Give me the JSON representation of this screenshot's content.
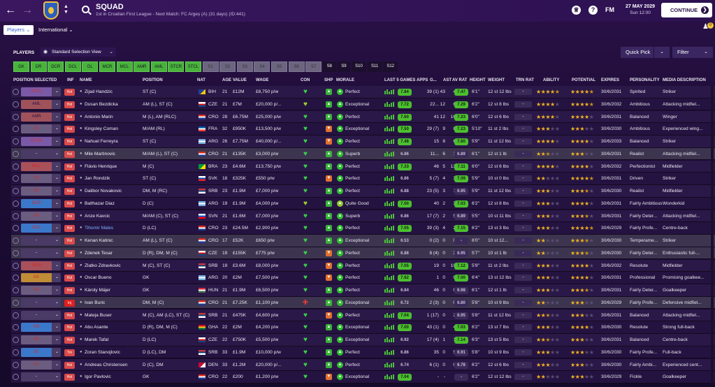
{
  "header": {
    "title": "SQUAD",
    "subtitle": "1st in Croatian First League - Next Match: FC Argeș (A) (31 days) (ID:441)",
    "date": "27 MAY 2029",
    "time": "Sun 12:00",
    "fm_label": "FM",
    "continue_label": "CONTINUE",
    "badge_count": "0"
  },
  "tabs": {
    "players": "Players",
    "international": "International"
  },
  "toolbar": {
    "section_label": "PLAYERS",
    "view": "Standard Selection View",
    "quick_pick": "Quick Pick",
    "filter": "Filter"
  },
  "position_filters": [
    "GK",
    "DR",
    "DCR",
    "DCL",
    "DL",
    "MCR",
    "MCL",
    "AMR",
    "AML",
    "STCR",
    "STCL",
    "S1",
    "S2",
    "S3",
    "S4",
    "S5",
    "S6",
    "S7",
    "S8",
    "S9",
    "S10",
    "S11",
    "S12"
  ],
  "columns": [
    "POSITION SELECTED",
    "INF",
    "NAME",
    "POSITION",
    "NAT",
    "AGE",
    "VALUE",
    "WAGE",
    "CON",
    "SHP",
    "MORALE",
    "LAST 5 GAMES",
    "APPS",
    "G...",
    "AST",
    "AV RAT",
    "HEIGHT",
    "WEIGHT",
    "TRN RAT",
    "ABILITY",
    "POTENTIAL",
    "EXPIRES",
    "PERSONALITY",
    "MEDIA DESCRIPTION"
  ],
  "players": [
    {
      "sel": "STCL",
      "inf": "Hol",
      "name": "Zijad Handzic",
      "position": "ST (C)",
      "nat": "BIH",
      "age": "21",
      "value": "£12M",
      "wage": "£8,750 p/w",
      "con": "green",
      "ship": "up",
      "morale": "Perfect",
      "l5": "7.84",
      "apps": "39 (1)",
      "goals": "43",
      "ast": "4",
      "avr": "7.47",
      "height": "6'1\"",
      "weight": "12 st 12 lbs",
      "trn": "-",
      "ability": 4.5,
      "potential": 4.5,
      "expires": "30/6/2031",
      "personality": "Spirited",
      "media": "Striker"
    },
    {
      "sel": "AML",
      "inf": "Hol",
      "name": "Dusan Bezdicka",
      "position": "AM (L), ST (C)",
      "nat": "CZE",
      "age": "21",
      "value": "£7M",
      "wage": "£20,000 p/...",
      "con": "yellowgreen",
      "ship": "up",
      "morale": "Exceptional",
      "l5": "7.72",
      "apps": "22...",
      "goals": "12",
      "ast": "6",
      "avr": "7.29",
      "height": "6'2\"",
      "weight": "12 st 8 lbs",
      "trn": "-",
      "ability": 4,
      "potential": 4.5,
      "expires": "30/6/2032",
      "personality": "Ambitious",
      "media": "Attacking midfiel..."
    },
    {
      "sel": "AMR",
      "inf": "Hol",
      "name": "Antonio Marin",
      "position": "M (L), AM (RLC)",
      "nat": "CRO",
      "age": "28",
      "value": "£6.75M",
      "wage": "£25,000 p/w",
      "con": "green",
      "ship": "up",
      "morale": "Perfect",
      "l5": "7.60",
      "apps": "41",
      "goals": "12",
      "ast": "16",
      "avr": "7.23",
      "height": "6'0\"",
      "weight": "12 st 6 lbs",
      "trn": "-",
      "ability": 4,
      "potential": 4,
      "expires": "30/6/2031",
      "personality": "Balanced",
      "media": "Winger"
    },
    {
      "sel": "S1",
      "inf": "Hol",
      "name": "Kingsley Coman",
      "position": "M/AM (RL)",
      "nat": "FRA",
      "age": "32",
      "value": "£950K",
      "wage": "£13,500 p/w",
      "con": "green",
      "ship": "down",
      "morale": "Exceptional",
      "l5": "7.50",
      "apps": "29 (7)",
      "goals": "9",
      "ast": "8",
      "avr": "7.23",
      "height": "5'10\"",
      "weight": "11 st 2 lbs",
      "trn": "-",
      "ability": 3,
      "potential": 3,
      "expires": "30/6/2030",
      "personality": "Ambitious",
      "media": "Experienced wing..."
    },
    {
      "sel": "STCR",
      "inf": "Hol",
      "name": "Nahuel Ferreyra",
      "position": "ST (C)",
      "nat": "ARG",
      "age": "26",
      "value": "£7.75M",
      "wage": "£40,000 p/...",
      "con": "green",
      "ship": "down",
      "morale": "Perfect",
      "l5": "7.48",
      "apps": "15",
      "goals": "8",
      "ast": "6",
      "avr": "7.60",
      "height": "5'9\"",
      "weight": "11 st 12 lbs",
      "trn": "-",
      "ability": 4,
      "potential": 4,
      "expires": "30/6/2033",
      "personality": "Balanced",
      "media": "Striker"
    },
    {
      "sel": "-",
      "inf": "Hol",
      "name": "Mile Martinovic",
      "position": "M/AM (L), ST (C)",
      "nat": "CRO",
      "age": "21",
      "value": "£135K",
      "wage": "£3,000 p/w",
      "con": "green",
      "ship": "up",
      "morale": "Superb",
      "l5": "6.86",
      "apps": "11...",
      "goals": "6",
      "ast": "1",
      "avr": "6.89",
      "height": "6'1\"",
      "weight": "12 st 1 lb",
      "trn": "-",
      "ability": 2.5,
      "potential": 3,
      "expires": "30/6/2031",
      "personality": "Realist",
      "media": "Attacking midfiel..."
    },
    {
      "sel": "MCL",
      "inf": "Hol",
      "name": "Flávio Henrique",
      "position": "M (C)",
      "nat": "BRA",
      "age": "23",
      "value": "£4.6M",
      "wage": "£13,750 p/w",
      "con": "green",
      "ship": "up",
      "morale": "Perfect",
      "l5": "7.33",
      "apps": "46",
      "goals": "5",
      "ast": "13",
      "avr": "7.11",
      "height": "6'0\"",
      "weight": "12 st 6 lbs",
      "trn": "-",
      "ability": 4,
      "potential": 4,
      "expires": "30/6/2032",
      "personality": "Perfectionist",
      "media": "Midfielder"
    },
    {
      "sel": "S3",
      "inf": "Hol",
      "name": "Jan Rondzik",
      "position": "ST (C)",
      "nat": "SVK",
      "age": "18",
      "value": "£325K",
      "wage": "£550 p/w",
      "con": "green",
      "ship": "down",
      "morale": "Perfect",
      "l5": "6.86",
      "apps": "5 (7)",
      "goals": "4",
      "ast": "3",
      "avr": "7.09",
      "height": "5'9\"",
      "weight": "10 st 0 lbs",
      "trn": "-",
      "ability": 2,
      "potential": 4.5,
      "expires": "30/6/2031",
      "personality": "Driven",
      "media": "Striker"
    },
    {
      "sel": "S2",
      "inf": "Hol",
      "name": "Dalibor Novakovic",
      "position": "DM, M (RC)",
      "nat": "SRB",
      "age": "23",
      "value": "£1.9M",
      "wage": "£7,000 p/w",
      "con": "green",
      "ship": "up",
      "morale": "Perfect",
      "l5": "6.88",
      "apps": "23 (5)",
      "goals": "3",
      "ast": "1",
      "avr": "6.95",
      "height": "5'9\"",
      "weight": "11 st 12 lbs",
      "trn": "-",
      "ability": 3,
      "potential": 3.5,
      "expires": "30/6/2030",
      "personality": "Realist",
      "media": "Midfielder"
    },
    {
      "sel": "DCR",
      "inf": "Hol",
      "name": "Balthazar Diaz",
      "position": "D (C)",
      "nat": "ARG",
      "age": "19",
      "value": "£1.9M",
      "wage": "£4,000 p/w",
      "con": "yellowgreen",
      "ship": "up",
      "morale": "Quite Good",
      "l5": "7.00",
      "apps": "40",
      "goals": "2",
      "ast": "3",
      "avr": "7.03",
      "height": "6'2\"",
      "weight": "12 st 8 lbs",
      "trn": "-",
      "ability": 3,
      "potential": 4,
      "expires": "30/6/2031",
      "personality": "Fairly Ambitious",
      "media": "Wonderkid"
    },
    {
      "sel": "S4",
      "inf": "Hol",
      "name": "Anze Kavcic",
      "position": "M/AM (C), ST (C)",
      "nat": "SVN",
      "age": "21",
      "value": "£1.6M",
      "wage": "£7,000 p/w",
      "con": "green",
      "ship": "up",
      "morale": "Superb",
      "l5": "6.86",
      "apps": "17 (7)",
      "goals": "2",
      "ast": "5",
      "avr": "6.89",
      "height": "5'5\"",
      "weight": "10 st 11 lbs",
      "trn": "-",
      "ability": 3,
      "potential": 3.5,
      "expires": "30/6/2031",
      "personality": "Fairly Deter...",
      "media": "Attacking midfiel..."
    },
    {
      "sel": "DCL",
      "inf": "Hol",
      "name": "Tihomir Males",
      "position": "D (LC)",
      "nat": "CRO",
      "age": "23",
      "value": "£24.5M",
      "wage": "£2,900 p/w",
      "con": "green",
      "ship": "up",
      "morale": "Perfect",
      "l5": "7.05",
      "apps": "39 (3)",
      "goals": "4",
      "ast": "2",
      "avr": "7.15",
      "height": "6'2\"",
      "weight": "13 st 3 lbs",
      "trn": "-",
      "ability": 3,
      "potential": 4.5,
      "expires": "30/6/2029",
      "personality": "Fairly Profe...",
      "media": "Centre-back"
    },
    {
      "sel": "-",
      "inf": "Hol",
      "name": "Kenan Katinic",
      "position": "AM (L), ST (C)",
      "nat": "CRO",
      "age": "17",
      "value": "£52K",
      "wage": "£650 p/w",
      "con": "green",
      "ship": "up",
      "morale": "Exceptional",
      "l5": "6.53",
      "apps": "0 (2)",
      "goals": "0",
      "ast": "0",
      "avr": "-",
      "height": "6'0\"",
      "weight": "10 st 12...",
      "trn": "-",
      "ability": 2,
      "potential": 3.5,
      "expires": "30/6/2030",
      "personality": "Temperame...",
      "media": "Striker"
    },
    {
      "sel": "-",
      "inf": "Hol",
      "name": "Zdenek Tesar",
      "position": "D (R), DM, M (C)",
      "nat": "CZE",
      "age": "19",
      "value": "£155K",
      "wage": "£775 p/w",
      "con": "green",
      "ship": "down",
      "morale": "Perfect",
      "l5": "6.88",
      "apps": "8 (4)",
      "goals": "0",
      "ast": "2",
      "avr": "6.95",
      "height": "5'7\"",
      "weight": "10 st 1 lb",
      "trn": "-",
      "ability": 2,
      "potential": 3.5,
      "expires": "30/6/2030",
      "personality": "Fairly Deter...",
      "media": "Enthusiastic full-..."
    },
    {
      "sel": "MCR",
      "inf": "Hol",
      "name": "Zlatko Zdravkovic",
      "position": "M (C), ST (C)",
      "nat": "SRB",
      "age": "19",
      "value": "£3.6M",
      "wage": "£8,000 p/w",
      "con": "green",
      "ship": "down",
      "morale": "Perfect",
      "l5": "7.05",
      "apps": "19",
      "goals": "0",
      "ast": "10",
      "avr": "7.12",
      "height": "5'9\"",
      "weight": "11 st 2 lbs",
      "trn": "-",
      "ability": 3,
      "potential": 4,
      "expires": "30/6/2032",
      "personality": "Resolute",
      "media": "Midfielder"
    },
    {
      "sel": "GK",
      "inf": "Hol",
      "name": "Oscar Bueno",
      "position": "GK",
      "nat": "ARG",
      "age": "20",
      "value": "£2M",
      "wage": "£7,500 p/w",
      "con": "green",
      "ship": "down",
      "morale": "Perfect",
      "l5": "7.62",
      "apps": "1",
      "goals": "0",
      "ast": "0",
      "avr": "7.00",
      "height": "6'4\"",
      "weight": "13 st 12 lbs",
      "trn": "-",
      "ability": 3,
      "potential": 4,
      "expires": "30/6/2031",
      "personality": "Professional",
      "media": "Promising goalkee..."
    },
    {
      "sel": "S5",
      "inf": "Hol",
      "name": "Károly Májer",
      "position": "GK",
      "nat": "HUN",
      "age": "21",
      "value": "£1.9M",
      "wage": "£6,500 p/w",
      "con": "green",
      "ship": "up",
      "morale": "Perfect",
      "l5": "6.84",
      "apps": "46",
      "goals": "0",
      "ast": "0",
      "avr": "6.98",
      "height": "6'1\"",
      "weight": "12 st 1 lb",
      "trn": "-",
      "ability": 3,
      "potential": 3.5,
      "expires": "30/6/2031",
      "personality": "Fairly Deter...",
      "media": "Goalkeeper"
    },
    {
      "sel": "-",
      "inf": "Inj",
      "name": "Ivan Buric",
      "position": "DM, M (C)",
      "nat": "CRO",
      "age": "21",
      "value": "£7.25K",
      "wage": "£1,100 p/w",
      "con": "red",
      "ship": "up",
      "morale": "Exceptional",
      "l5": "6.72",
      "apps": "2 (3)",
      "goals": "0",
      "ast": "0",
      "avr": "6.80",
      "height": "5'8\"",
      "weight": "10 st 9 lbs",
      "trn": "-",
      "ability": 2,
      "potential": 3,
      "expires": "30/6/2029",
      "personality": "Fairly Profe...",
      "media": "Defensive midfiel..."
    },
    {
      "sel": "-",
      "inf": "Hol",
      "name": "Mateja Buser",
      "position": "M (C), AM (LC), ST (C)",
      "nat": "SRB",
      "age": "21",
      "value": "£475K",
      "wage": "£4,600 p/w",
      "con": "green",
      "ship": "down",
      "morale": "Perfect",
      "l5": "7.04",
      "apps": "1 (17)",
      "goals": "0",
      "ast": "2",
      "avr": "6.95",
      "height": "5'8\"",
      "weight": "11 st 12 lbs",
      "trn": "-",
      "ability": 2.5,
      "potential": 3,
      "expires": "30/6/2031",
      "personality": "Balanced",
      "media": "Attacking midfiel..."
    },
    {
      "sel": "DR",
      "inf": "Hol",
      "name": "Abu Asante",
      "position": "D (R), DM, M (C)",
      "nat": "GHA",
      "age": "22",
      "value": "£2M",
      "wage": "£4,200 p/w",
      "con": "green",
      "ship": "up",
      "morale": "Exceptional",
      "l5": "7.00",
      "apps": "43 (1)",
      "goals": "0",
      "ast": "4",
      "avr": "7.03",
      "height": "6'2\"",
      "weight": "13 st 7 lbs",
      "trn": "-",
      "ability": 3,
      "potential": 4,
      "expires": "30/6/2030",
      "personality": "Resolute",
      "media": "Strong full-back"
    },
    {
      "sel": "S6",
      "inf": "Hol",
      "name": "Marek Tafat",
      "position": "D (LC)",
      "nat": "CZE",
      "age": "22",
      "value": "£750K",
      "wage": "£5,500 p/w",
      "con": "green",
      "ship": "up",
      "morale": "Exceptional",
      "l5": "6.92",
      "apps": "17 (4)",
      "goals": "1",
      "ast": "1",
      "avr": "7.14",
      "height": "6'3\"",
      "weight": "13 st 5 lbs",
      "trn": "-",
      "ability": 2.5,
      "potential": 3,
      "expires": "30/6/2031",
      "personality": "Balanced",
      "media": "Centre-back"
    },
    {
      "sel": "DL",
      "inf": "Trn",
      "name": "Zoran Stanojlovic",
      "position": "D (LC), DM",
      "nat": "SRB",
      "age": "33",
      "value": "£1.9M",
      "wage": "£10,000 p/w",
      "con": "green",
      "ship": "up",
      "morale": "Perfect",
      "l5": "6.86",
      "apps": "35",
      "goals": "0",
      "ast": "5",
      "avr": "6.91",
      "height": "5'8\"",
      "weight": "10 st 9 lbs",
      "trn": "-",
      "ability": 3,
      "potential": 3,
      "expires": "30/6/2030",
      "personality": "Fairly Profe...",
      "media": "Full-back"
    },
    {
      "sel": "S7",
      "inf": "Hol",
      "name": "Andreas Christensen",
      "position": "D (C), DM",
      "nat": "DEN",
      "age": "33",
      "value": "£1.2M",
      "wage": "£20,000 p/...",
      "con": "green",
      "ship": "up",
      "morale": "Perfect",
      "l5": "6.74",
      "apps": "6 (1)",
      "goals": "0",
      "ast": "0",
      "avr": "6.78",
      "height": "6'2\"",
      "weight": "12 st 6 lbs",
      "trn": "-",
      "ability": 3,
      "potential": 3,
      "expires": "30/6/2030",
      "personality": "Fairly Ambi...",
      "media": "Experienced cent..."
    },
    {
      "sel": "-",
      "inf": "Hol",
      "name": "Igor Pavlovic",
      "position": "GK",
      "nat": "CRO",
      "age": "22",
      "value": "£200",
      "wage": "£1,200 p/w",
      "con": "green",
      "ship": "down",
      "morale": "Exceptional",
      "l5": "7.04",
      "apps": "-",
      "goals": "-",
      "ast": "-",
      "avr": "-",
      "height": "6'2\"",
      "weight": "12 st 12 lbs",
      "trn": "-",
      "ability": 2,
      "potential": 3,
      "expires": "30/6/2029",
      "personality": "Fickle",
      "media": "Goalkeeper"
    }
  ]
}
